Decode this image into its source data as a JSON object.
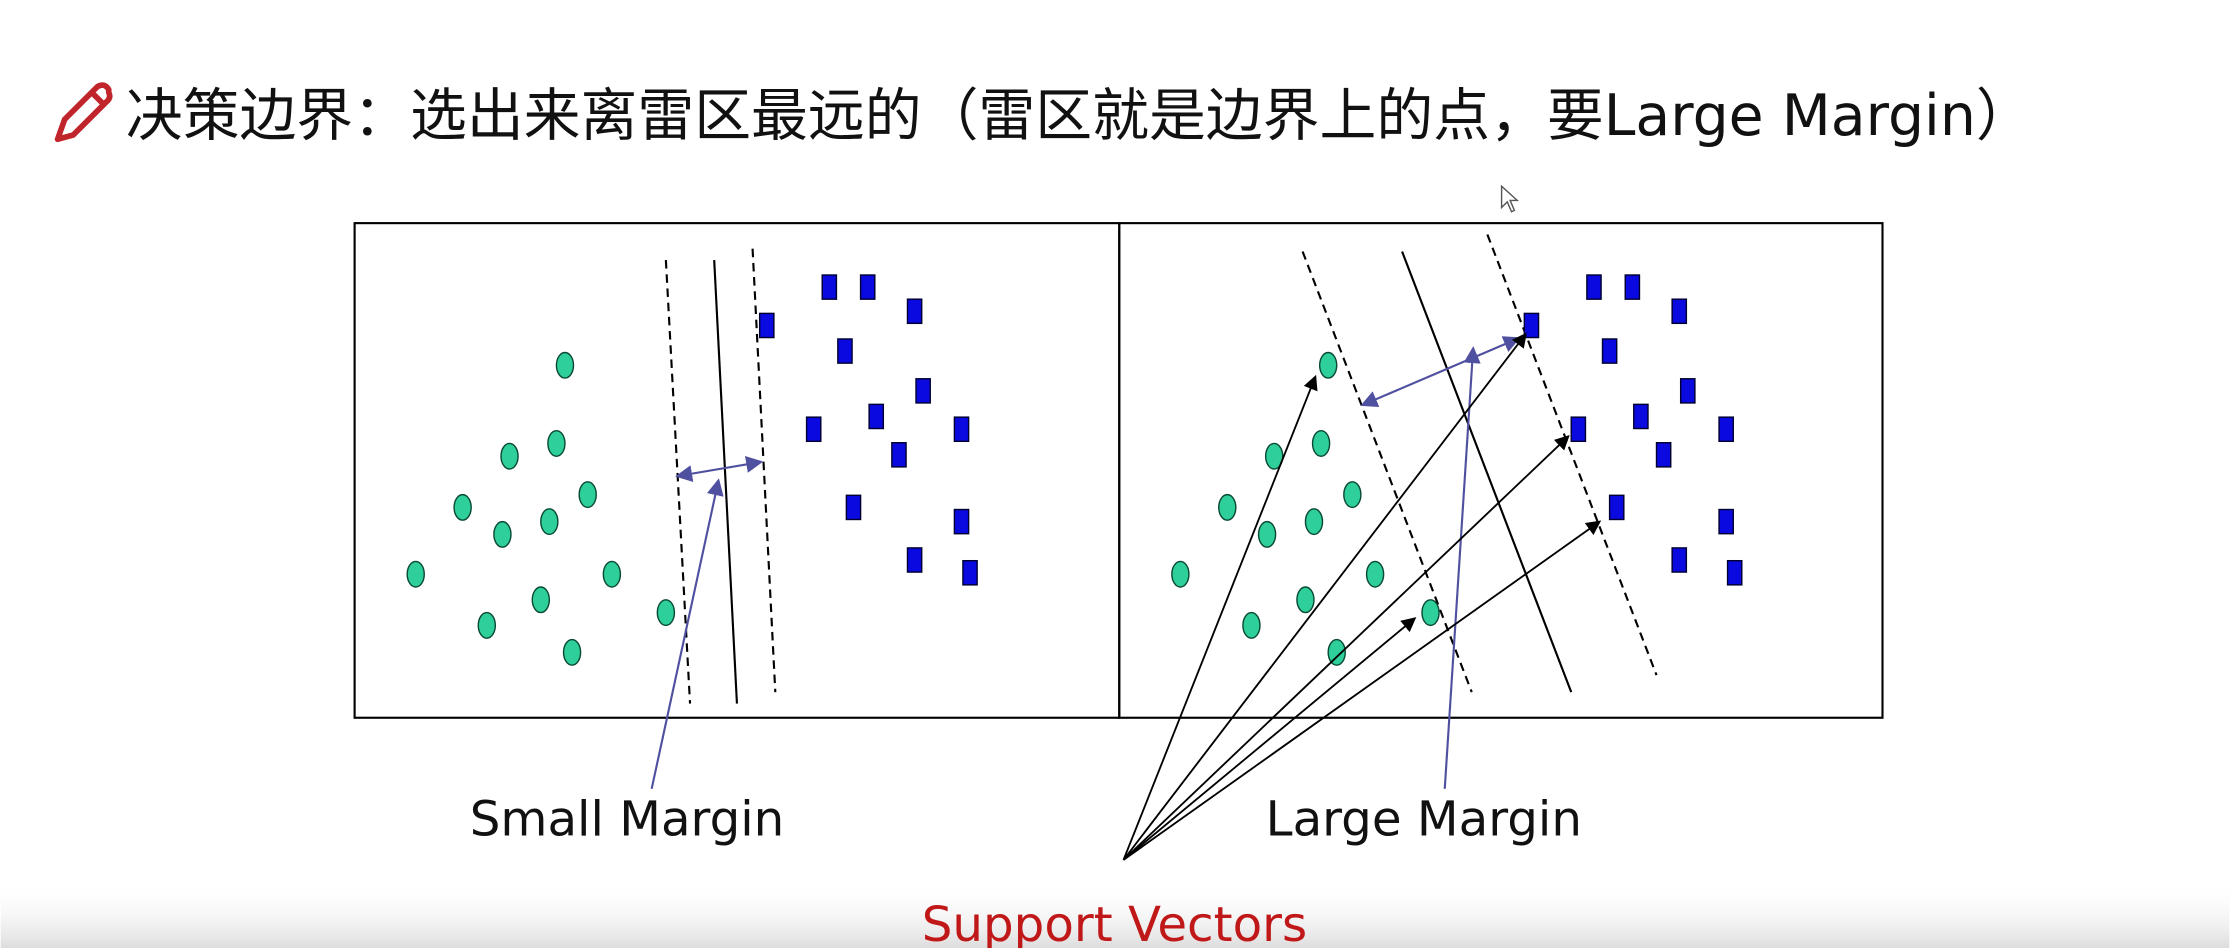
{
  "header": {
    "title": "决策边界：选出来离雷区最远的（雷区就是边界上的点，要Large Margin）"
  },
  "figure": {
    "left_label": "Small Margin",
    "right_label": "Large Margin",
    "bottom_label": "Support Vectors"
  }
}
